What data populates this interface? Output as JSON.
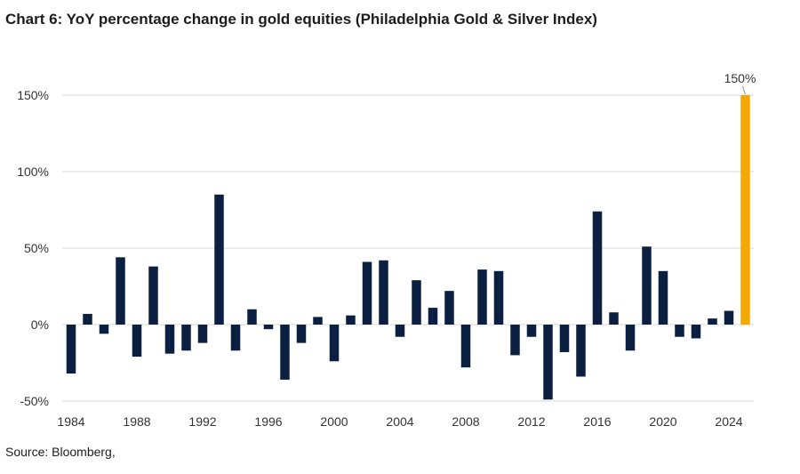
{
  "title": "Chart 6: YoY percentage change in gold equities (Philadelphia Gold & Silver Index)",
  "source": "Source: Bloomberg,",
  "colors": {
    "bar": "#0b1f40",
    "highlight": "#f5a800",
    "grid": "#d9d9d9",
    "axis_text": "#333333"
  },
  "chart_data": {
    "type": "bar",
    "title": "Chart 6: YoY percentage change in gold equities (Philadelphia Gold & Silver Index)",
    "xlabel": "",
    "ylabel": "",
    "ylim": [
      -50,
      150
    ],
    "yticks": [
      -50,
      0,
      50,
      100,
      150
    ],
    "ytick_labels": [
      "-50%",
      "0%",
      "50%",
      "100%",
      "150%"
    ],
    "xtick_labels": [
      "1984",
      "1988",
      "1992",
      "1996",
      "2000",
      "2004",
      "2008",
      "2012",
      "2016",
      "2020",
      "2024"
    ],
    "grid": true,
    "categories": [
      "1984",
      "1985",
      "1986",
      "1987",
      "1988",
      "1989",
      "1990",
      "1991",
      "1992",
      "1993",
      "1994",
      "1995",
      "1996",
      "1997",
      "1998",
      "1999",
      "2000",
      "2001",
      "2002",
      "2003",
      "2004",
      "2005",
      "2006",
      "2007",
      "2008",
      "2009",
      "2010",
      "2011",
      "2012",
      "2013",
      "2014",
      "2015",
      "2016",
      "2017",
      "2018",
      "2019",
      "2020",
      "2021",
      "2022",
      "2023",
      "2024",
      "2025"
    ],
    "values": [
      -32,
      7,
      -6,
      44,
      -21,
      38,
      -19,
      -17,
      -12,
      85,
      -17,
      10,
      -3,
      -36,
      -12,
      5,
      -24,
      6,
      41,
      42,
      -8,
      29,
      11,
      22,
      -28,
      36,
      35,
      -20,
      -8,
      -49,
      -18,
      -34,
      74,
      8,
      -17,
      51,
      35,
      -8,
      -9,
      4,
      9,
      150
    ],
    "highlight_index": 41,
    "annotation": "150%"
  }
}
